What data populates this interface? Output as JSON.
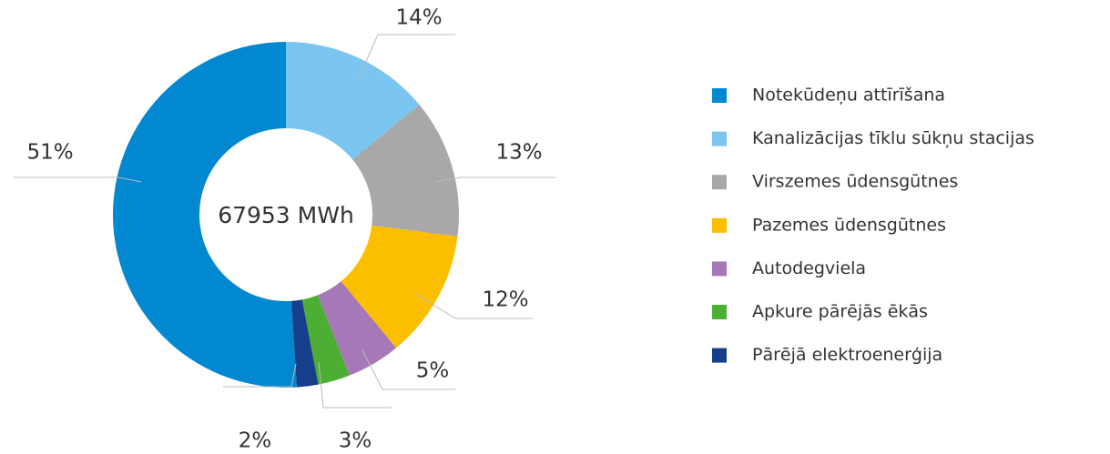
{
  "chart_data": {
    "type": "donut",
    "center_label": "67953 MWh",
    "categories": [
      "Notekūdeņu attīrīšana",
      "Kanalizācijas tīklu sūkņu stacijas",
      "Virszemes ūdensgūtnes",
      "Pazemes ūdensgūtnes",
      "Autodegviela",
      "Apkure pārējās ēkās",
      "Pārējā elektroenerģija"
    ],
    "values": [
      51,
      14,
      13,
      12,
      5,
      3,
      2
    ],
    "value_labels": [
      "51%",
      "14%",
      "13%",
      "12%",
      "5%",
      "3%",
      "2%"
    ],
    "colors": [
      "#0288d1",
      "#7ac6f0",
      "#a8a8a8",
      "#fbbf00",
      "#a678b8",
      "#4caf33",
      "#173e8a"
    ],
    "legend": "right"
  }
}
